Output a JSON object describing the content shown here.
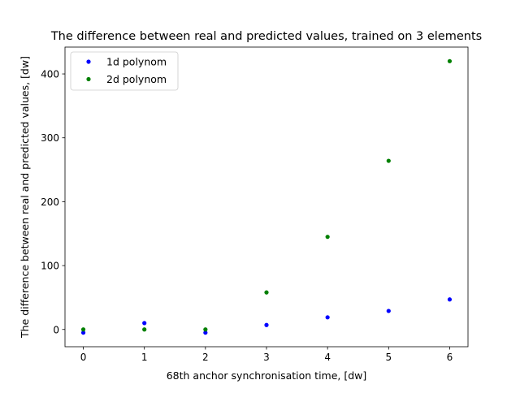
{
  "chart_data": {
    "type": "scatter",
    "title": "The difference between real and predicted values, trained on 3 elements",
    "xlabel": "68th anchor synchronisation time, [dw]",
    "ylabel": "The difference between real and predicted values, [dw]",
    "xlim": [
      -0.3,
      6.3
    ],
    "ylim": [
      -27,
      442
    ],
    "xticks": [
      0,
      1,
      2,
      3,
      4,
      5,
      6
    ],
    "yticks": [
      0,
      100,
      200,
      300,
      400
    ],
    "grid": false,
    "legend_position": "top-left",
    "series": [
      {
        "name": "1d polynom",
        "color": "#0000ff",
        "marker": "dot",
        "x": [
          0,
          1,
          2,
          3,
          4,
          5,
          6
        ],
        "y": [
          -5,
          10,
          -5,
          7,
          19,
          29,
          47
        ]
      },
      {
        "name": "2d polynom",
        "color": "#008000",
        "marker": "dot",
        "x": [
          0,
          1,
          2,
          3,
          4,
          5,
          6
        ],
        "y": [
          0,
          0,
          0,
          58,
          145,
          264,
          420
        ]
      }
    ]
  }
}
